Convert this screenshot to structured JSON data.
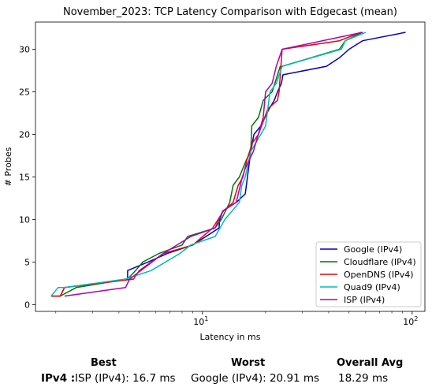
{
  "chart_data": {
    "type": "line",
    "title": "November_2023: TCP Latency Comparison with Edgecast (mean)",
    "xlabel": "Latency in ms",
    "ylabel": "# Probes",
    "xscale": "log",
    "xlim": [
      1.6,
      115
    ],
    "ylim": [
      -0.8,
      33.2
    ],
    "x_ticks": [
      {
        "v": 10,
        "base": "10",
        "exp": "1"
      },
      {
        "v": 100,
        "base": "10",
        "exp": "2"
      }
    ],
    "y_ticks": [
      0,
      5,
      10,
      15,
      20,
      25,
      30
    ],
    "legend_position": "lower right",
    "grid": false,
    "series": [
      {
        "name": "Google (IPv4)",
        "color": "#0000cc",
        "x": [
          2.05,
          2.1,
          2.2,
          4.4,
          4.4,
          5.5,
          6.8,
          9.0,
          12.0,
          12.1,
          12.5,
          14.5,
          16.0,
          16.4,
          16.8,
          17.0,
          17.6,
          19.0,
          20.8,
          22.0,
          22.8,
          23.8,
          24.2,
          39.0,
          45.0,
          50.0,
          58.0,
          93.0
        ],
        "y": [
          1,
          1,
          2,
          3,
          4,
          5,
          6,
          7,
          9,
          10,
          11,
          12,
          13,
          15,
          17,
          18,
          20,
          21,
          23,
          24,
          25,
          26,
          27,
          28,
          29,
          30,
          31,
          32
        ]
      },
      {
        "name": "Cloudflare (IPv4)",
        "color": "#007700",
        "x": [
          1.9,
          2.0,
          2.1,
          2.5,
          4.4,
          4.8,
          5.2,
          6.2,
          8.0,
          8.5,
          11.5,
          12.3,
          13.5,
          14.0,
          15.0,
          16.2,
          17.0,
          17.2,
          18.5,
          19.5,
          21.5,
          23.5,
          24.0,
          45.0,
          48.0,
          58.0
        ],
        "y": [
          1,
          1,
          1,
          2,
          3,
          4,
          5,
          6,
          7,
          8,
          9,
          10,
          12,
          14,
          15,
          17,
          18,
          21,
          22,
          24,
          25,
          28,
          28,
          30,
          31,
          32
        ]
      },
      {
        "name": "OpenDNS (IPv4)",
        "color": "#ee0000",
        "x": [
          1.9,
          2.1,
          2.2,
          4.7,
          5.0,
          6.5,
          9.0,
          11.2,
          12.6,
          14.0,
          14.8,
          15.6,
          16.3,
          17.3,
          18.5,
          20.5,
          22.8,
          23.2,
          24.0,
          45.0,
          57.0
        ],
        "y": [
          1,
          1,
          2,
          3,
          4,
          6,
          7,
          9,
          11,
          12,
          14,
          15,
          17,
          19,
          20,
          23,
          24,
          25,
          30,
          31,
          32
        ]
      },
      {
        "name": "Quad9 (IPv4)",
        "color": "#00bbbb",
        "x": [
          1.9,
          2.05,
          2.2,
          4.3,
          5.7,
          7.8,
          8.8,
          11.5,
          12.8,
          15.0,
          15.4,
          16.0,
          17.0,
          19.0,
          20.0,
          21.0,
          22.5,
          24.0,
          46.0,
          48.0,
          60.0
        ],
        "y": [
          1,
          2,
          2,
          3,
          4,
          6,
          7,
          8,
          10,
          12,
          14,
          15,
          18,
          20,
          21,
          25,
          26,
          28,
          30,
          31,
          32
        ]
      },
      {
        "name": "ISP (IPv4)",
        "color": "#aa00bb",
        "x": [
          2.2,
          4.3,
          4.5,
          6.5,
          8.8,
          11.5,
          12.5,
          14.5,
          15.5,
          16.0,
          17.5,
          19.5,
          20.0,
          21.5,
          22.5,
          24.0,
          58.0
        ],
        "y": [
          1,
          2,
          3,
          6,
          8,
          9,
          11,
          12,
          15,
          16,
          18,
          22,
          25,
          26,
          28,
          30,
          32
        ]
      }
    ]
  },
  "summary": {
    "best_header": "Best",
    "worst_header": "Worst",
    "avg_header": "Overall Avg",
    "row_label": "IPv4 :",
    "best_value": "ISP (IPv4): 16.7 ms",
    "worst_value": "Google (IPv4): 20.91 ms",
    "avg_value": "18.29 ms"
  }
}
